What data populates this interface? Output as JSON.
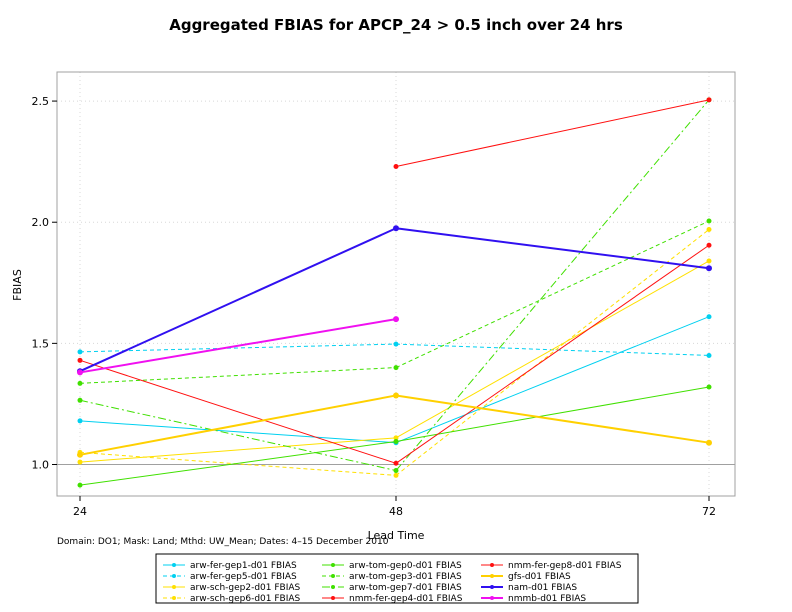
{
  "chart_data": {
    "type": "line",
    "title": "Aggregated FBIAS for APCP_24 > 0.5 inch over 24 hrs",
    "xlabel": "Lead Time",
    "ylabel": "FBIAS",
    "x": [
      24,
      48,
      72
    ],
    "x_tick_labels": [
      "24",
      "48",
      "72"
    ],
    "ylim": [
      0.87,
      2.62
    ],
    "y_ticks": [
      1.0,
      1.5,
      2.0,
      2.5
    ],
    "y_tick_labels": [
      "1.0",
      "1.5",
      "2.0",
      "2.5"
    ],
    "reference_line": 1.0,
    "grid": true,
    "caption": "Domain: DO1; Mask: Land; Mthd: UW_Mean; Dates: 4–15 December 2010",
    "series": [
      {
        "name": "arw-fer-gep1-d01 FBIAS",
        "color": "#00d0f0",
        "dash": "solid",
        "width": 1,
        "values": [
          1.18,
          1.09,
          1.61
        ]
      },
      {
        "name": "arw-fer-gep5-d01 FBIAS",
        "color": "#00d0f0",
        "dash": "dashed",
        "width": 1,
        "values": [
          1.465,
          1.497,
          1.45
        ]
      },
      {
        "name": "arw-sch-gep2-d01 FBIAS",
        "color": "#ffe000",
        "dash": "solid",
        "width": 1,
        "values": [
          1.01,
          1.11,
          1.84
        ]
      },
      {
        "name": "arw-sch-gep6-d01 FBIAS",
        "color": "#ffe000",
        "dash": "dashed",
        "width": 1,
        "values": [
          1.05,
          0.955,
          1.97
        ]
      },
      {
        "name": "arw-tom-gep0-d01 FBIAS",
        "color": "#40e000",
        "dash": "solid",
        "width": 1,
        "values": [
          0.915,
          1.095,
          1.32
        ]
      },
      {
        "name": "arw-tom-gep3-d01 FBIAS",
        "color": "#40e000",
        "dash": "dashed",
        "width": 1,
        "values": [
          1.335,
          1.4,
          2.005
        ]
      },
      {
        "name": "arw-tom-gep7-d01 FBIAS",
        "color": "#40e000",
        "dash": "dashdot",
        "width": 1,
        "values": [
          1.265,
          0.975,
          2.505
        ]
      },
      {
        "name": "nmm-fer-gep4-d01 FBIAS",
        "color": "#ff1010",
        "dash": "solid",
        "width": 1,
        "values": [
          1.43,
          1.005,
          1.905
        ]
      },
      {
        "name": "nmm-fer-gep8-d01 FBIAS",
        "color": "#ff1010",
        "dash": "solid",
        "width": 1,
        "values": [
          null,
          2.23,
          2.505
        ]
      },
      {
        "name": "gfs-d01 FBIAS",
        "color": "#ffd000",
        "dash": "solid",
        "width": 2,
        "values": [
          1.04,
          1.285,
          1.09
        ]
      },
      {
        "name": "nam-d01 FBIAS",
        "color": "#3010f0",
        "dash": "solid",
        "width": 2,
        "values": [
          1.385,
          1.975,
          1.81
        ]
      },
      {
        "name": "nmmb-d01 FBIAS",
        "color": "#f010f0",
        "dash": "solid",
        "width": 2,
        "values": [
          1.38,
          1.6,
          null
        ]
      }
    ]
  }
}
